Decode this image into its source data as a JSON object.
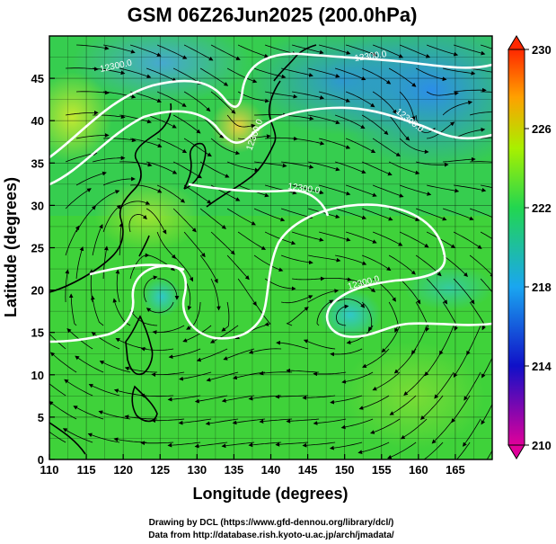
{
  "title": "GSM 06Z26Jun2025 (200.0hPa)",
  "x_axis": {
    "label": "Longitude (degrees)",
    "ticks": [
      "110",
      "115",
      "120",
      "125",
      "130",
      "135",
      "140",
      "145",
      "150",
      "155",
      "160",
      "165"
    ]
  },
  "y_axis": {
    "label": "Latitude (degrees)",
    "ticks": [
      "0",
      "5",
      "10",
      "15",
      "20",
      "25",
      "30",
      "35",
      "40",
      "45"
    ]
  },
  "colorbar": {
    "ticks": [
      "210",
      "214",
      "218",
      "222",
      "226",
      "230"
    ],
    "colors": [
      "#e0009a",
      "#1010c8",
      "#1aa6f0",
      "#22d650",
      "#a8f000",
      "#ffa000",
      "#ff2800"
    ]
  },
  "contours": {
    "labels": [
      "12300.0",
      "12300.0",
      "12300.0",
      "12300.0",
      "12300.0",
      "12300.0"
    ]
  },
  "credits": {
    "line1": "Drawing by DCL (https://www.gfd-dennou.org/library/dcl/)",
    "line2": "Data from http://database.rish.kyoto-u.ac.jp/arch/jmadata/"
  }
}
